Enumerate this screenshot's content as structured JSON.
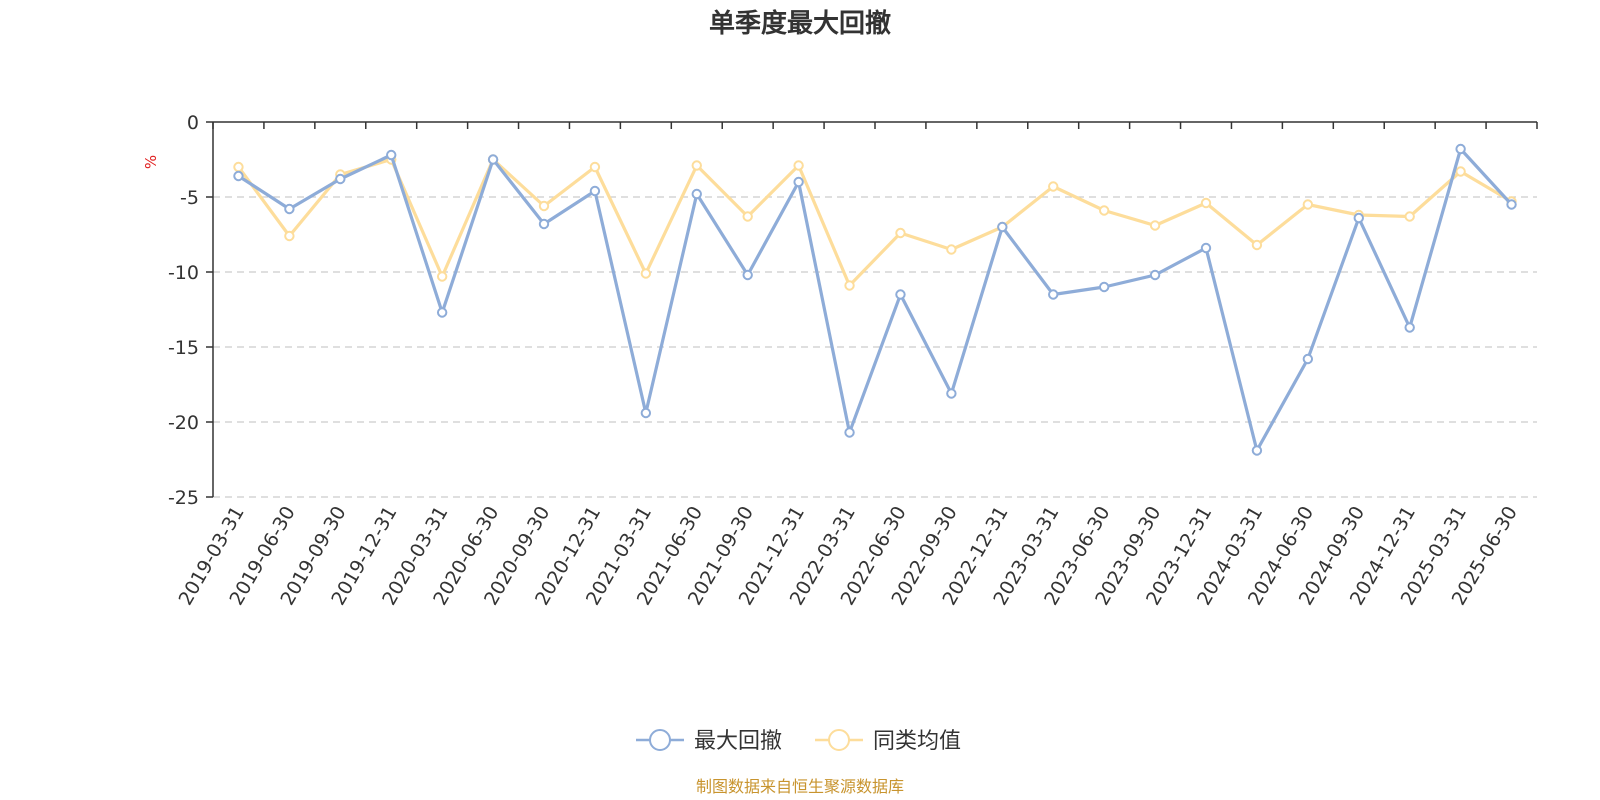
{
  "chart_data": {
    "type": "line",
    "title": "单季度最大回撤",
    "ylabel": "%",
    "ylim": [
      -25,
      0
    ],
    "yticks": [
      0,
      -5,
      -10,
      -15,
      -20,
      -25
    ],
    "grid": true,
    "legend_position": "bottom-center",
    "x": [
      "2019-03-31",
      "2019-06-30",
      "2019-09-30",
      "2019-12-31",
      "2020-03-31",
      "2020-06-30",
      "2020-09-30",
      "2020-12-31",
      "2021-03-31",
      "2021-06-30",
      "2021-09-30",
      "2021-12-31",
      "2022-03-31",
      "2022-06-30",
      "2022-09-30",
      "2022-12-31",
      "2023-03-31",
      "2023-06-30",
      "2023-09-30",
      "2023-12-31",
      "2024-03-31",
      "2024-06-30",
      "2024-09-30",
      "2024-12-31",
      "2025-03-31",
      "2025-06-30"
    ],
    "series": [
      {
        "name": "最大回撤",
        "color": "#8eacd8",
        "values": [
          -3.6,
          -5.8,
          -3.8,
          -2.2,
          -12.7,
          -2.5,
          -6.8,
          -4.6,
          -19.4,
          -4.8,
          -10.2,
          -4.0,
          -20.7,
          -11.5,
          -18.1,
          -7.0,
          -11.5,
          -11.0,
          -10.2,
          -8.4,
          -21.9,
          -15.8,
          -6.4,
          -13.7,
          -1.8,
          -5.5
        ]
      },
      {
        "name": "同类均值",
        "color": "#fddd9b",
        "values": [
          -3.0,
          -7.6,
          -3.5,
          -2.5,
          -10.3,
          -2.5,
          -5.6,
          -3.0,
          -10.1,
          -2.9,
          -6.3,
          -2.9,
          -10.9,
          -7.4,
          -8.5,
          -7.0,
          -4.3,
          -5.9,
          -6.9,
          -5.4,
          -8.2,
          -5.5,
          -6.2,
          -6.3,
          -3.3,
          -5.3
        ]
      }
    ]
  },
  "footer": {
    "source": "制图数据来自恒生聚源数据库",
    "source_color": "#c8942e"
  },
  "colors": {
    "unit_label": "#e02020",
    "grid": "#cccccc",
    "axis": "#333333"
  }
}
